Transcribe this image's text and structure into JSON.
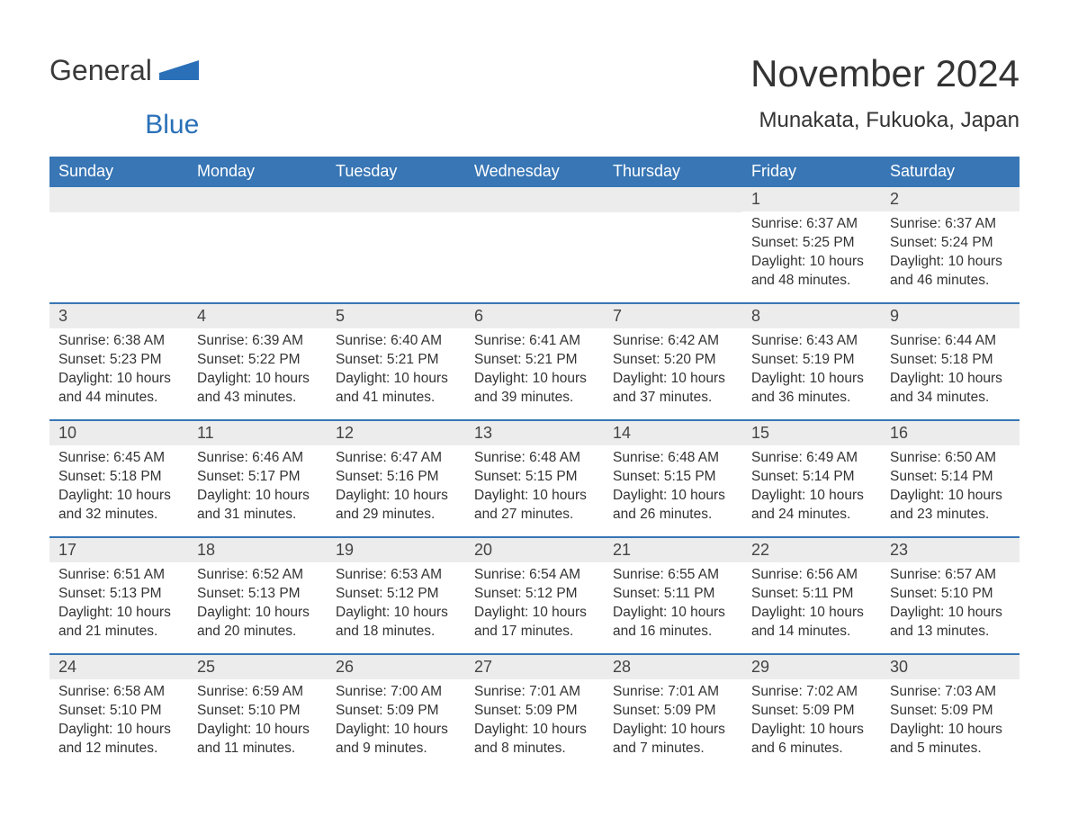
{
  "logo": {
    "word1": "General",
    "word2": "Blue",
    "shape_color": "#2a70b8"
  },
  "title": "November 2024",
  "location": "Munakata, Fukuoka, Japan",
  "colors": {
    "header_bg": "#3876b5",
    "header_text": "#ffffff",
    "daynum_bg": "#ececec",
    "border": "#3876b5",
    "body_text": "#333333",
    "logo_gray": "#3a3a3a",
    "logo_blue": "#2a70b8"
  },
  "weekdays": [
    "Sunday",
    "Monday",
    "Tuesday",
    "Wednesday",
    "Thursday",
    "Friday",
    "Saturday"
  ],
  "weeks": [
    [
      {
        "empty": true
      },
      {
        "empty": true
      },
      {
        "empty": true
      },
      {
        "empty": true
      },
      {
        "empty": true
      },
      {
        "day": "1",
        "sunrise": "Sunrise: 6:37 AM",
        "sunset": "Sunset: 5:25 PM",
        "daylight1": "Daylight: 10 hours",
        "daylight2": "and 48 minutes."
      },
      {
        "day": "2",
        "sunrise": "Sunrise: 6:37 AM",
        "sunset": "Sunset: 5:24 PM",
        "daylight1": "Daylight: 10 hours",
        "daylight2": "and 46 minutes."
      }
    ],
    [
      {
        "day": "3",
        "sunrise": "Sunrise: 6:38 AM",
        "sunset": "Sunset: 5:23 PM",
        "daylight1": "Daylight: 10 hours",
        "daylight2": "and 44 minutes."
      },
      {
        "day": "4",
        "sunrise": "Sunrise: 6:39 AM",
        "sunset": "Sunset: 5:22 PM",
        "daylight1": "Daylight: 10 hours",
        "daylight2": "and 43 minutes."
      },
      {
        "day": "5",
        "sunrise": "Sunrise: 6:40 AM",
        "sunset": "Sunset: 5:21 PM",
        "daylight1": "Daylight: 10 hours",
        "daylight2": "and 41 minutes."
      },
      {
        "day": "6",
        "sunrise": "Sunrise: 6:41 AM",
        "sunset": "Sunset: 5:21 PM",
        "daylight1": "Daylight: 10 hours",
        "daylight2": "and 39 minutes."
      },
      {
        "day": "7",
        "sunrise": "Sunrise: 6:42 AM",
        "sunset": "Sunset: 5:20 PM",
        "daylight1": "Daylight: 10 hours",
        "daylight2": "and 37 minutes."
      },
      {
        "day": "8",
        "sunrise": "Sunrise: 6:43 AM",
        "sunset": "Sunset: 5:19 PM",
        "daylight1": "Daylight: 10 hours",
        "daylight2": "and 36 minutes."
      },
      {
        "day": "9",
        "sunrise": "Sunrise: 6:44 AM",
        "sunset": "Sunset: 5:18 PM",
        "daylight1": "Daylight: 10 hours",
        "daylight2": "and 34 minutes."
      }
    ],
    [
      {
        "day": "10",
        "sunrise": "Sunrise: 6:45 AM",
        "sunset": "Sunset: 5:18 PM",
        "daylight1": "Daylight: 10 hours",
        "daylight2": "and 32 minutes."
      },
      {
        "day": "11",
        "sunrise": "Sunrise: 6:46 AM",
        "sunset": "Sunset: 5:17 PM",
        "daylight1": "Daylight: 10 hours",
        "daylight2": "and 31 minutes."
      },
      {
        "day": "12",
        "sunrise": "Sunrise: 6:47 AM",
        "sunset": "Sunset: 5:16 PM",
        "daylight1": "Daylight: 10 hours",
        "daylight2": "and 29 minutes."
      },
      {
        "day": "13",
        "sunrise": "Sunrise: 6:48 AM",
        "sunset": "Sunset: 5:15 PM",
        "daylight1": "Daylight: 10 hours",
        "daylight2": "and 27 minutes."
      },
      {
        "day": "14",
        "sunrise": "Sunrise: 6:48 AM",
        "sunset": "Sunset: 5:15 PM",
        "daylight1": "Daylight: 10 hours",
        "daylight2": "and 26 minutes."
      },
      {
        "day": "15",
        "sunrise": "Sunrise: 6:49 AM",
        "sunset": "Sunset: 5:14 PM",
        "daylight1": "Daylight: 10 hours",
        "daylight2": "and 24 minutes."
      },
      {
        "day": "16",
        "sunrise": "Sunrise: 6:50 AM",
        "sunset": "Sunset: 5:14 PM",
        "daylight1": "Daylight: 10 hours",
        "daylight2": "and 23 minutes."
      }
    ],
    [
      {
        "day": "17",
        "sunrise": "Sunrise: 6:51 AM",
        "sunset": "Sunset: 5:13 PM",
        "daylight1": "Daylight: 10 hours",
        "daylight2": "and 21 minutes."
      },
      {
        "day": "18",
        "sunrise": "Sunrise: 6:52 AM",
        "sunset": "Sunset: 5:13 PM",
        "daylight1": "Daylight: 10 hours",
        "daylight2": "and 20 minutes."
      },
      {
        "day": "19",
        "sunrise": "Sunrise: 6:53 AM",
        "sunset": "Sunset: 5:12 PM",
        "daylight1": "Daylight: 10 hours",
        "daylight2": "and 18 minutes."
      },
      {
        "day": "20",
        "sunrise": "Sunrise: 6:54 AM",
        "sunset": "Sunset: 5:12 PM",
        "daylight1": "Daylight: 10 hours",
        "daylight2": "and 17 minutes."
      },
      {
        "day": "21",
        "sunrise": "Sunrise: 6:55 AM",
        "sunset": "Sunset: 5:11 PM",
        "daylight1": "Daylight: 10 hours",
        "daylight2": "and 16 minutes."
      },
      {
        "day": "22",
        "sunrise": "Sunrise: 6:56 AM",
        "sunset": "Sunset: 5:11 PM",
        "daylight1": "Daylight: 10 hours",
        "daylight2": "and 14 minutes."
      },
      {
        "day": "23",
        "sunrise": "Sunrise: 6:57 AM",
        "sunset": "Sunset: 5:10 PM",
        "daylight1": "Daylight: 10 hours",
        "daylight2": "and 13 minutes."
      }
    ],
    [
      {
        "day": "24",
        "sunrise": "Sunrise: 6:58 AM",
        "sunset": "Sunset: 5:10 PM",
        "daylight1": "Daylight: 10 hours",
        "daylight2": "and 12 minutes."
      },
      {
        "day": "25",
        "sunrise": "Sunrise: 6:59 AM",
        "sunset": "Sunset: 5:10 PM",
        "daylight1": "Daylight: 10 hours",
        "daylight2": "and 11 minutes."
      },
      {
        "day": "26",
        "sunrise": "Sunrise: 7:00 AM",
        "sunset": "Sunset: 5:09 PM",
        "daylight1": "Daylight: 10 hours",
        "daylight2": "and 9 minutes."
      },
      {
        "day": "27",
        "sunrise": "Sunrise: 7:01 AM",
        "sunset": "Sunset: 5:09 PM",
        "daylight1": "Daylight: 10 hours",
        "daylight2": "and 8 minutes."
      },
      {
        "day": "28",
        "sunrise": "Sunrise: 7:01 AM",
        "sunset": "Sunset: 5:09 PM",
        "daylight1": "Daylight: 10 hours",
        "daylight2": "and 7 minutes."
      },
      {
        "day": "29",
        "sunrise": "Sunrise: 7:02 AM",
        "sunset": "Sunset: 5:09 PM",
        "daylight1": "Daylight: 10 hours",
        "daylight2": "and 6 minutes."
      },
      {
        "day": "30",
        "sunrise": "Sunrise: 7:03 AM",
        "sunset": "Sunset: 5:09 PM",
        "daylight1": "Daylight: 10 hours",
        "daylight2": "and 5 minutes."
      }
    ]
  ]
}
